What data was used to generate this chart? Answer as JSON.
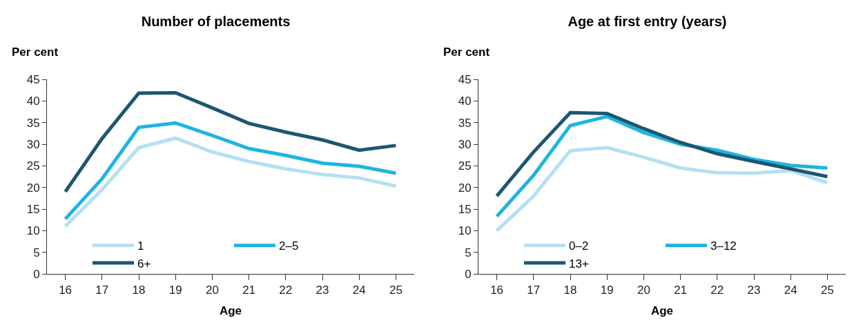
{
  "chart_data": [
    {
      "type": "line",
      "title": "Number of placements",
      "ylabel": "Per cent",
      "xlabel": "Age",
      "categories": [
        "16",
        "17",
        "18",
        "19",
        "20",
        "21",
        "22",
        "23",
        "24",
        "25"
      ],
      "ylim": [
        0,
        45
      ],
      "yticks": [
        0,
        5,
        10,
        15,
        20,
        25,
        30,
        35,
        40,
        45
      ],
      "grid": false,
      "legend": "bottom",
      "marker": "none",
      "line_style": "solid",
      "series": [
        {
          "name": "1",
          "color": "#b3e0f2",
          "values": [
            11,
            19.5,
            29.2,
            31.4,
            28.2,
            26,
            24.3,
            23,
            22.2,
            20.3
          ]
        },
        {
          "name": "2–5",
          "color": "#1eb4e0",
          "values": [
            12.7,
            22,
            33.9,
            34.9,
            32,
            29,
            27.4,
            25.6,
            24.9,
            23.3
          ]
        },
        {
          "name": "6+",
          "color": "#1d5670",
          "values": [
            19,
            31.3,
            41.8,
            41.9,
            38.4,
            34.8,
            32.8,
            31,
            28.6,
            29.7
          ]
        }
      ]
    },
    {
      "type": "line",
      "title": "Age at first entry (years)",
      "ylabel": "Per cent",
      "xlabel": "Age",
      "categories": [
        "16",
        "17",
        "18",
        "19",
        "20",
        "21",
        "22",
        "23",
        "24",
        "25"
      ],
      "ylim": [
        0,
        45
      ],
      "yticks": [
        0,
        5,
        10,
        15,
        20,
        25,
        30,
        35,
        40,
        45
      ],
      "grid": false,
      "legend": "bottom",
      "marker": "none",
      "line_style": "solid",
      "series": [
        {
          "name": "0–2",
          "color": "#b3e0f2",
          "values": [
            10,
            18,
            28.5,
            29.2,
            27,
            24.5,
            23.4,
            23.3,
            23.9,
            21.1
          ]
        },
        {
          "name": "3–12",
          "color": "#1eb4e0",
          "values": [
            13.3,
            22.8,
            34.3,
            36.4,
            32.7,
            30,
            28.6,
            26.5,
            25.1,
            24.5
          ]
        },
        {
          "name": "13+",
          "color": "#1d5670",
          "values": [
            18,
            28.2,
            37.3,
            37.1,
            33.6,
            30.4,
            27.8,
            26,
            24.3,
            22.5
          ]
        }
      ]
    }
  ]
}
